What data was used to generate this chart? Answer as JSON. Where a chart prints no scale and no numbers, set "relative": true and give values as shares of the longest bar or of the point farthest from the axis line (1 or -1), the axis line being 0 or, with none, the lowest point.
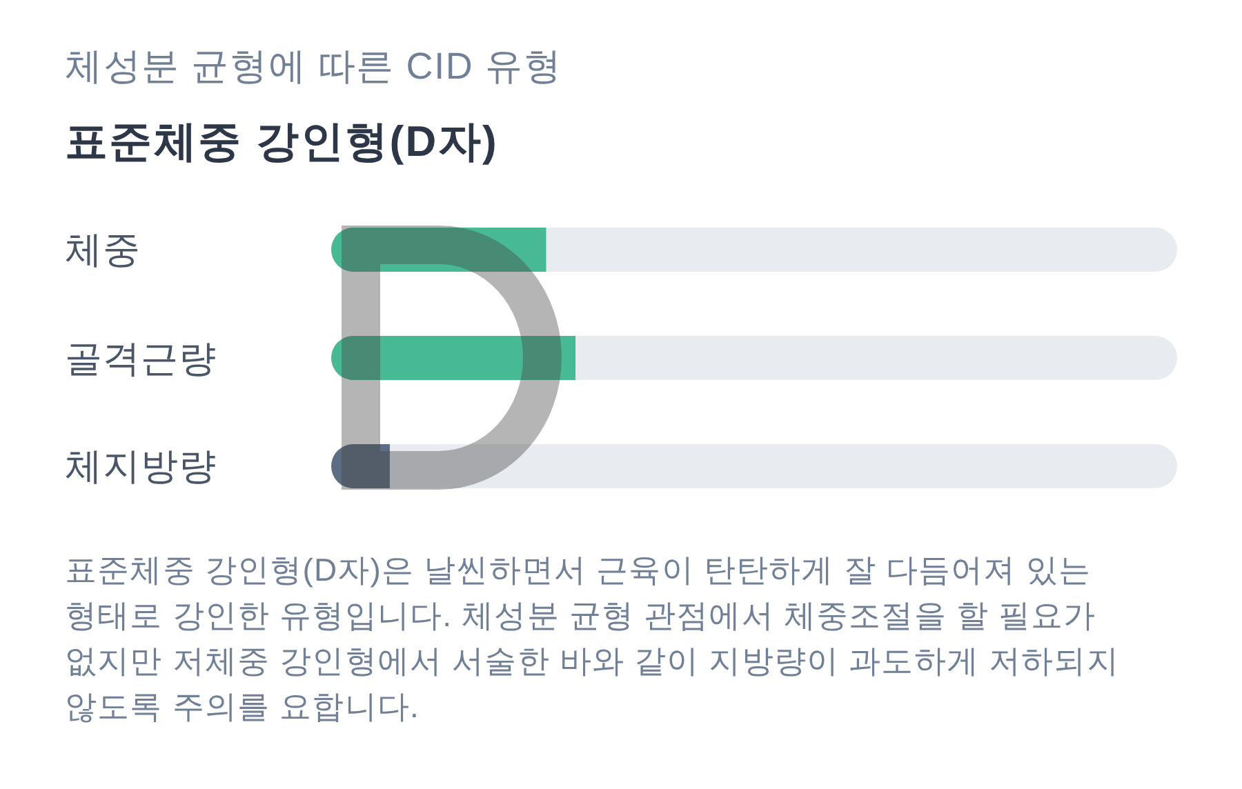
{
  "chart_data": {
    "type": "bar",
    "orientation": "horizontal",
    "relative": true,
    "subtitle": "체성분 균형에 따른 CID 유형",
    "title": "표준체중 강인형(D자)",
    "categories": [
      "체중",
      "골격근량",
      "체지방량"
    ],
    "values": [
      0.88,
      1,
      0.24
    ],
    "colors": [
      "#48b995",
      "#48b995",
      "#5d6d83"
    ],
    "annotations": [
      "표준체중 강인형(D자)은 날씬하면서 근육이 탄탄하게 잘 다듬어져 있는 형태로 강인한 유형입니다. 체성분 균형 관점에서 체중조절을 할 필요가 없지만 저체중 강인형에서 서술한 바와 같이 지방량이 과도하게 저하되지 않도록 주의를 요합니다."
    ]
  }
}
